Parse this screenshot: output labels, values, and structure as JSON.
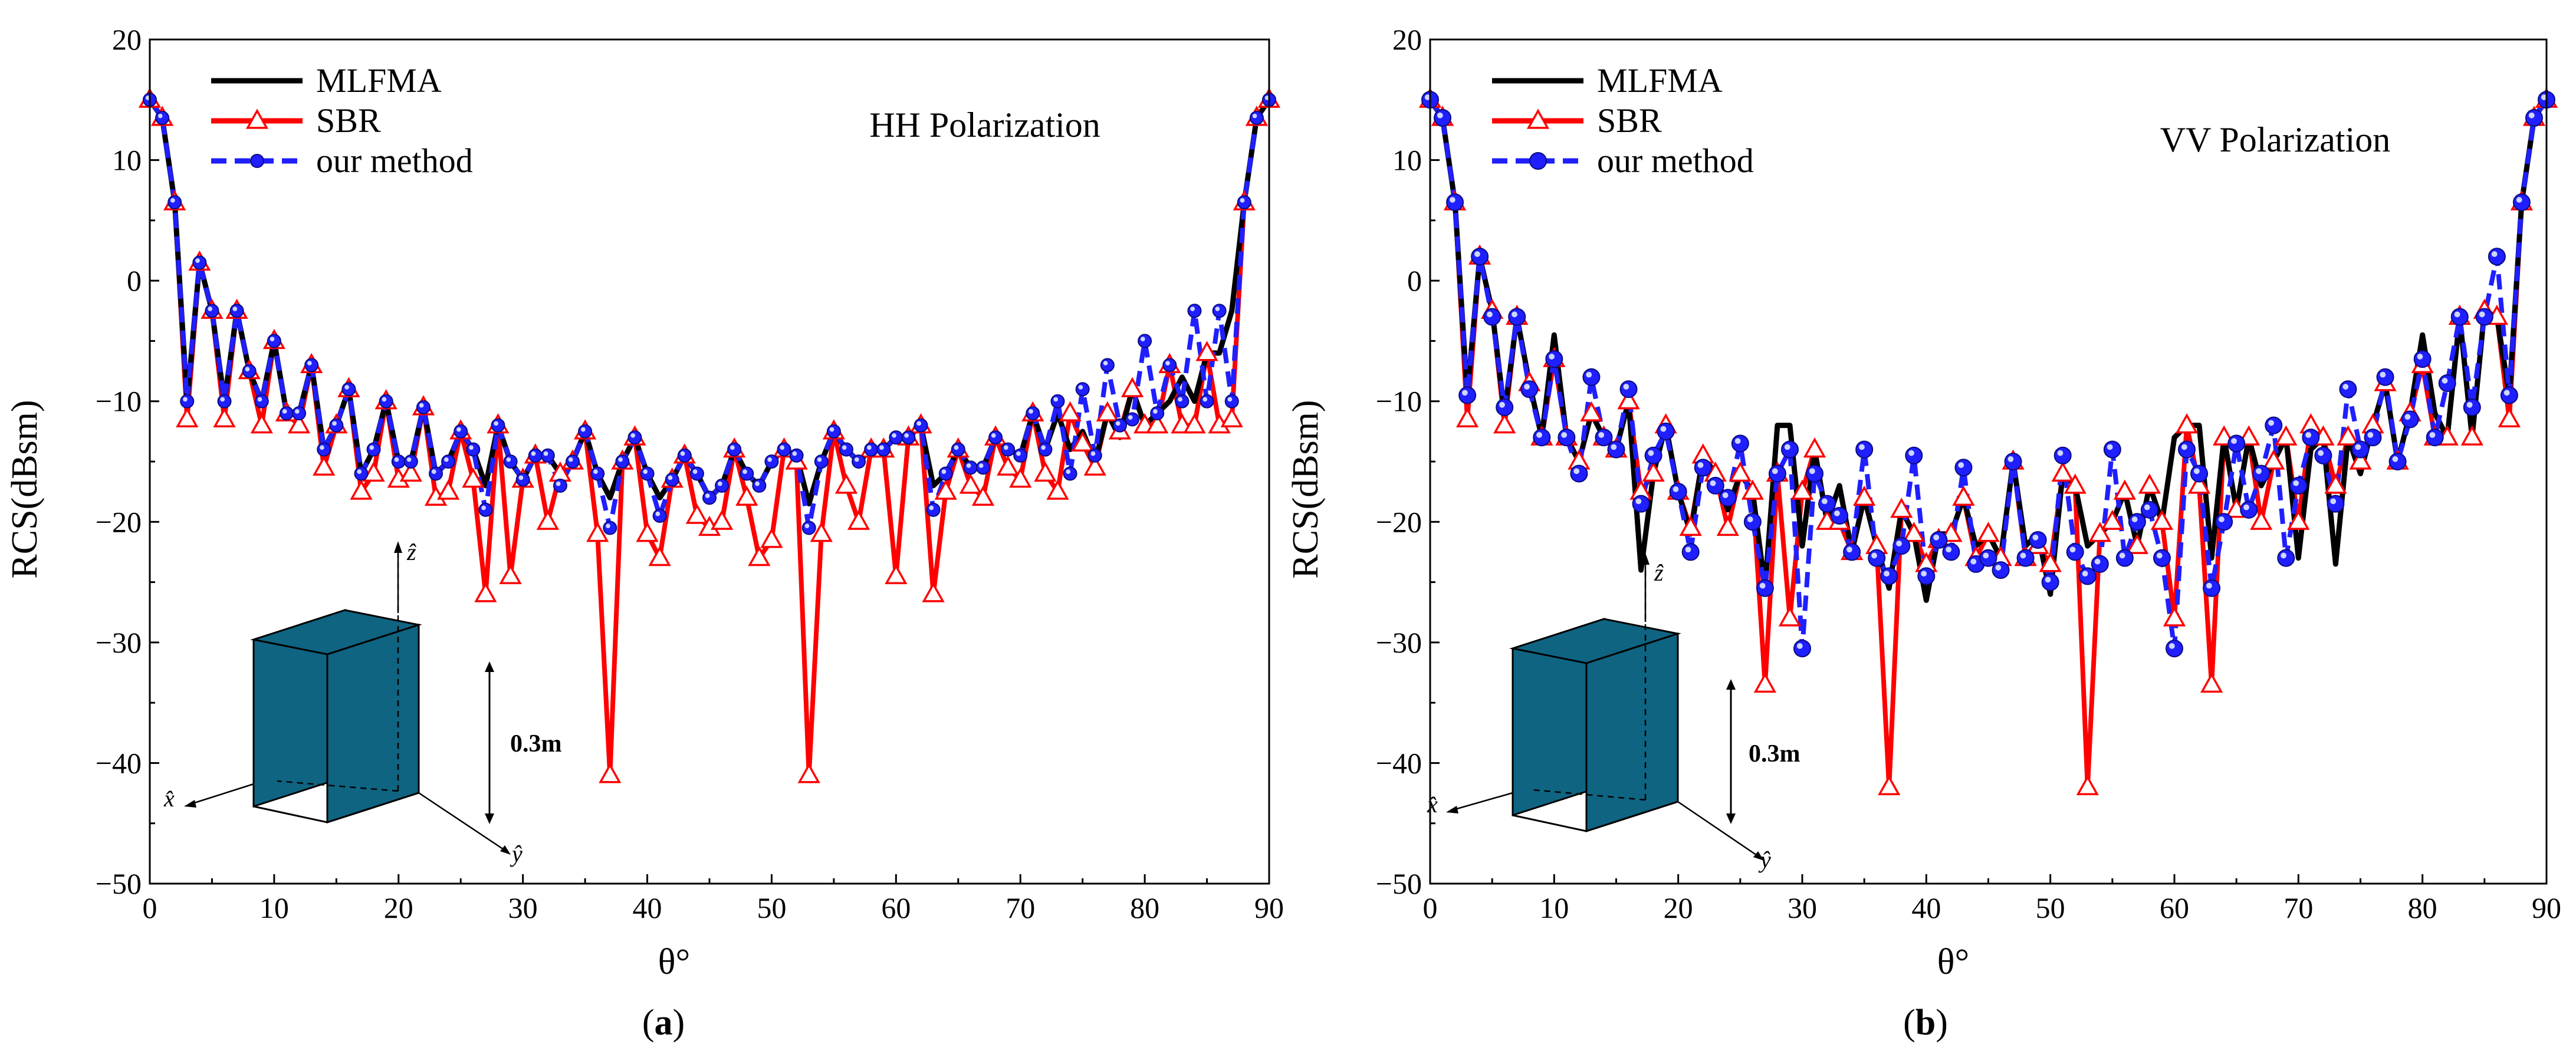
{
  "colors": {
    "mlfma": "#000000",
    "sbr": "#ff0000",
    "ours": "#1f1fff",
    "cube": "#0f6482",
    "cube_edge": "#000000"
  },
  "panels": [
    {
      "caption_letter": "a",
      "annotation": "HH Polarization",
      "cube_label": "0.3m",
      "axis_x_label": "x̂",
      "axis_y_label": "ŷ",
      "axis_z_label": "ẑ"
    },
    {
      "caption_letter": "b",
      "annotation": "VV Polarization",
      "cube_label": "0.3m",
      "axis_x_label": "x̂",
      "axis_y_label": "ŷ",
      "axis_z_label": "ẑ"
    }
  ],
  "chart_data": [
    {
      "type": "line",
      "title": "HH Polarization",
      "xlabel": "θ°",
      "ylabel": "RCS(dBsm)",
      "xlim": [
        0,
        90
      ],
      "ylim": [
        -50,
        20
      ],
      "xticks": [
        0,
        10,
        20,
        30,
        40,
        50,
        60,
        70,
        80,
        90
      ],
      "yticks": [
        20,
        10,
        0,
        -10,
        -20,
        -30,
        -40,
        -50
      ],
      "legend_position": "top-left",
      "x": [
        0,
        1,
        2,
        3,
        4,
        5,
        6,
        7,
        8,
        9,
        10,
        11,
        12,
        13,
        14,
        15,
        16,
        17,
        18,
        19,
        20,
        21,
        22,
        23,
        24,
        25,
        26,
        27,
        28,
        29,
        30,
        31,
        32,
        33,
        34,
        35,
        36,
        37,
        38,
        39,
        40,
        41,
        42,
        43,
        44,
        45,
        46,
        47,
        48,
        49,
        50,
        51,
        52,
        53,
        54,
        55,
        56,
        57,
        58,
        59,
        60,
        61,
        62,
        63,
        64,
        65,
        66,
        67,
        68,
        69,
        70,
        71,
        72,
        73,
        74,
        75,
        76,
        77,
        78,
        79,
        80,
        81,
        82,
        83,
        84,
        85,
        86,
        87,
        88,
        89,
        90
      ],
      "series": [
        {
          "name": "MLFMA",
          "marker": "none",
          "values": [
            15,
            13.5,
            6.5,
            -10,
            1.5,
            -2.5,
            -10,
            -2.5,
            -7.5,
            -10,
            -5,
            -11,
            -11,
            -7,
            -14,
            -12,
            -9,
            -16,
            -14,
            -10,
            -15,
            -15,
            -10.5,
            -16,
            -15,
            -12.5,
            -14,
            -17,
            -12,
            -15,
            -16.5,
            -14.5,
            -14.5,
            -16,
            -15,
            -12.5,
            -16,
            -18,
            -15,
            -13,
            -16,
            -18,
            -16.5,
            -14.5,
            -16,
            -18,
            -17,
            -14,
            -16,
            -17,
            -15,
            -14,
            -14.5,
            -18.5,
            -15,
            -12.5,
            -14,
            -15,
            -14,
            -14,
            -13,
            -13,
            -12,
            -17,
            -16,
            -14,
            -15.5,
            -15.5,
            -13,
            -14,
            -14.5,
            -11,
            -14,
            -11,
            -14,
            -12.5,
            -15,
            -11,
            -13,
            -9,
            -12,
            -11,
            -10,
            -8,
            -10,
            -6,
            -6,
            -2.5,
            6.5,
            13.5,
            15
          ]
        },
        {
          "name": "SBR",
          "marker": "open-triangle",
          "values": [
            15,
            13.5,
            6.5,
            -11.5,
            1.5,
            -2.5,
            -11.5,
            -2.5,
            -7.5,
            -12,
            -5,
            -11,
            -12,
            -7,
            -15.5,
            -12,
            -9,
            -17.5,
            -16,
            -10,
            -16.5,
            -16,
            -10.5,
            -18,
            -17.5,
            -12.5,
            -16.5,
            -26,
            -12,
            -24.5,
            -16.5,
            -14.5,
            -20,
            -16,
            -15,
            -12.5,
            -21,
            -41,
            -15,
            -13,
            -21,
            -23,
            -16.5,
            -14.5,
            -19.5,
            -20.5,
            -20,
            -14,
            -18,
            -23,
            -21.5,
            -14,
            -15,
            -41,
            -21,
            -12.5,
            -17,
            -20,
            -14,
            -14,
            -24.5,
            -13,
            -12,
            -26,
            -17.5,
            -14,
            -17,
            -18,
            -13,
            -15.5,
            -16.5,
            -11,
            -16,
            -17.5,
            -11,
            -13.5,
            -15.5,
            -11,
            -12.5,
            -9,
            -12,
            -12,
            -7,
            -12,
            -12,
            -6,
            -12,
            -11.5,
            6.5,
            13.5,
            15
          ]
        },
        {
          "name": "our method",
          "marker": "filled-circle",
          "values": [
            15,
            13.5,
            6.5,
            -10,
            1.5,
            -2.5,
            -10,
            -2.5,
            -7.5,
            -10,
            -5,
            -11,
            -11,
            -7,
            -14,
            -12,
            -9,
            -16,
            -14,
            -10,
            -15,
            -15,
            -10.5,
            -16,
            -15,
            -12.5,
            -14,
            -19,
            -12,
            -15,
            -16.5,
            -14.5,
            -14.5,
            -17,
            -15,
            -12.5,
            -16,
            -20.5,
            -15,
            -13,
            -16,
            -19.5,
            -16.5,
            -14.5,
            -16,
            -18,
            -17,
            -14,
            -16,
            -17,
            -15,
            -14,
            -14.5,
            -20.5,
            -15,
            -12.5,
            -14,
            -15,
            -14,
            -14,
            -13,
            -13,
            -12,
            -19,
            -16,
            -14,
            -15.5,
            -15.5,
            -13,
            -14,
            -14.5,
            -11,
            -14,
            -10,
            -16,
            -9,
            -14.5,
            -7,
            -12,
            -11.5,
            -5,
            -11,
            -7,
            -10,
            -2.5,
            -10,
            -2.5,
            -10,
            6.5,
            13.5,
            15
          ]
        }
      ]
    },
    {
      "type": "line",
      "title": "VV Polarization",
      "xlabel": "θ°",
      "ylabel": "RCS(dBsm)",
      "xlim": [
        0,
        90
      ],
      "ylim": [
        -50,
        20
      ],
      "xticks": [
        0,
        10,
        20,
        30,
        40,
        50,
        60,
        70,
        80,
        90
      ],
      "yticks": [
        20,
        10,
        0,
        -10,
        -20,
        -30,
        -40,
        -50
      ],
      "legend_position": "top-left",
      "x": [
        0,
        1,
        2,
        3,
        4,
        5,
        6,
        7,
        8,
        9,
        10,
        11,
        12,
        13,
        14,
        15,
        16,
        17,
        18,
        19,
        20,
        21,
        22,
        23,
        24,
        25,
        26,
        27,
        28,
        29,
        30,
        31,
        32,
        33,
        34,
        35,
        36,
        37,
        38,
        39,
        40,
        41,
        42,
        43,
        44,
        45,
        46,
        47,
        48,
        49,
        50,
        51,
        52,
        53,
        54,
        55,
        56,
        57,
        58,
        59,
        60,
        61,
        62,
        63,
        64,
        65,
        66,
        67,
        68,
        69,
        70,
        71,
        72,
        73,
        74,
        75,
        76,
        77,
        78,
        79,
        80,
        81,
        82,
        83,
        84,
        85,
        86,
        87,
        88,
        89,
        90
      ],
      "series": [
        {
          "name": "MLFMA",
          "marker": "none",
          "values": [
            15,
            13.5,
            6.5,
            -9.5,
            2,
            -2.5,
            -11,
            -3,
            -8.5,
            -13,
            -4.5,
            -13,
            -15,
            -11,
            -13,
            -14,
            -10,
            -24,
            -16,
            -12,
            -17.5,
            -21,
            -14.5,
            -16,
            -19,
            -16,
            -17.5,
            -25.5,
            -12,
            -12,
            -22,
            -14,
            -20,
            -17,
            -22.5,
            -18,
            -22,
            -25.5,
            -19,
            -21,
            -26.5,
            -21,
            -21,
            -18,
            -22,
            -21,
            -23,
            -15,
            -22,
            -21,
            -26,
            -16,
            -17,
            -22,
            -21,
            -20,
            -17.5,
            -22,
            -17,
            -20,
            -13,
            -12,
            -12,
            -23,
            -13,
            -19,
            -13,
            -17,
            -15,
            -13,
            -23,
            -14,
            -13,
            -23.5,
            -13,
            -16,
            -12,
            -8.5,
            -15,
            -11,
            -4.5,
            -11,
            -13,
            -3,
            -13,
            -2.5,
            -3,
            -9.5,
            6.5,
            13.5,
            15
          ]
        },
        {
          "name": "SBR",
          "marker": "open-triangle",
          "values": [
            15,
            13.5,
            6.5,
            -11.5,
            2,
            -2.5,
            -12,
            -3,
            -8.5,
            -13,
            -6.5,
            -13,
            -15,
            -11,
            -13,
            -14,
            -10,
            -17.5,
            -16,
            -12,
            -17.5,
            -20.5,
            -14.5,
            -16,
            -20.5,
            -16,
            -17.5,
            -33.5,
            -16,
            -28,
            -17.5,
            -14,
            -20,
            -20,
            -22.5,
            -18,
            -22,
            -42,
            -19,
            -21,
            -23.5,
            -21.5,
            -21,
            -18,
            -23,
            -21,
            -23,
            -15,
            -23,
            -22,
            -23.5,
            -16,
            -17,
            -42,
            -21,
            -20,
            -17.5,
            -22,
            -17,
            -20,
            -28,
            -12,
            -17,
            -33.5,
            -13,
            -19,
            -13,
            -20,
            -15,
            -13,
            -20,
            -12,
            -13,
            -17,
            -13,
            -15,
            -12,
            -8.5,
            -15,
            -11,
            -7,
            -13,
            -13,
            -3,
            -13,
            -2.5,
            -3,
            -11.5,
            6.5,
            13.5,
            15
          ]
        },
        {
          "name": "our method",
          "marker": "filled-circle",
          "values": [
            15,
            13.5,
            6.5,
            -9.5,
            2,
            -3,
            -10.5,
            -3,
            -9,
            -13,
            -6.5,
            -13,
            -16,
            -8,
            -13,
            -14,
            -9,
            -18.5,
            -14.5,
            -12.5,
            -17.5,
            -22.5,
            -15.5,
            -17,
            -18,
            -13.5,
            -20,
            -25.5,
            -16,
            -14,
            -30.5,
            -16,
            -18.5,
            -19.5,
            -22.5,
            -14,
            -23,
            -24.5,
            -22,
            -14.5,
            -24.5,
            -21.5,
            -22.5,
            -15.5,
            -23.5,
            -23,
            -24,
            -15,
            -23,
            -21.5,
            -25,
            -14.5,
            -22.5,
            -24.5,
            -23.5,
            -14,
            -23,
            -20,
            -19,
            -23,
            -30.5,
            -14,
            -16,
            -25.5,
            -20,
            -13.5,
            -19,
            -16,
            -12,
            -23,
            -17,
            -13,
            -14.5,
            -18.5,
            -9,
            -14,
            -13,
            -8,
            -15,
            -11.5,
            -6.5,
            -13,
            -8.5,
            -3,
            -10.5,
            -3,
            2,
            -9.5,
            6.5,
            13.5,
            15
          ]
        }
      ]
    }
  ]
}
